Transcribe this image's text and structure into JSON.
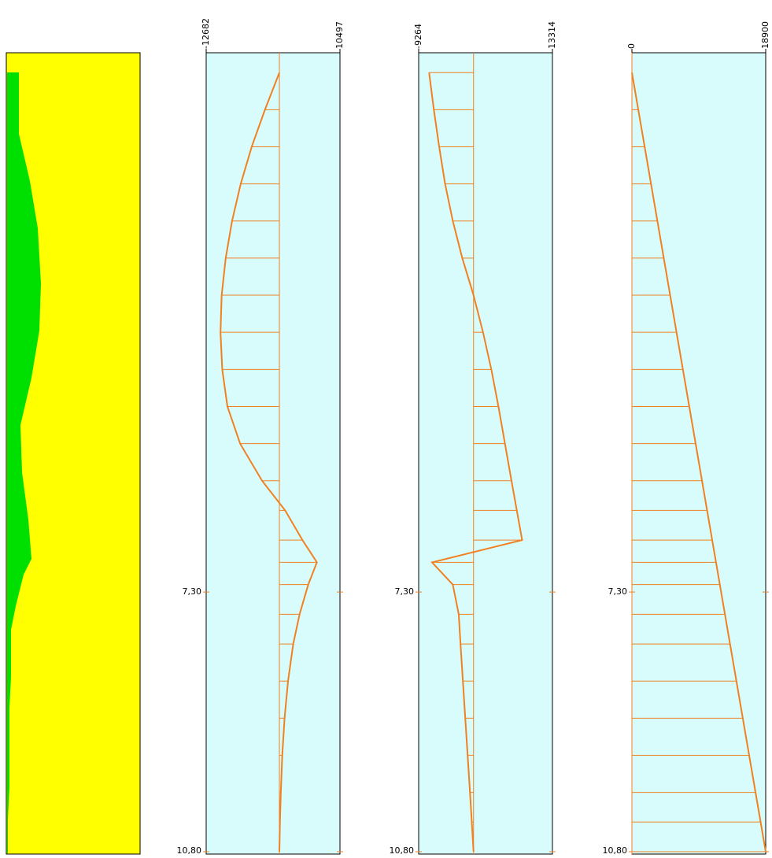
{
  "chart_data": [
    {
      "type": "line",
      "color": "#f08020",
      "background": "#d8fcfc",
      "xlim": [
        -12682,
        10497
      ],
      "xticks": [
        -12682,
        10497
      ],
      "ylim": [
        0,
        10.8
      ],
      "yticks": [
        {
          "value": 7.3,
          "label": "7,30"
        },
        {
          "value": 10.8,
          "label": "10,80"
        }
      ],
      "y": [
        0.3,
        0.8,
        1.3,
        1.8,
        2.3,
        2.8,
        3.3,
        3.8,
        4.3,
        4.8,
        5.3,
        5.8,
        6.2,
        6.6,
        6.9,
        7.2,
        7.6,
        8.0,
        8.5,
        9.0,
        9.5,
        10.0,
        10.4,
        10.8
      ],
      "values": [
        0,
        -2500,
        -4800,
        -6700,
        -8200,
        -9300,
        -10000,
        -10200,
        -9900,
        -9000,
        -6800,
        -3000,
        1000,
        4000,
        6500,
        5000,
        3500,
        2400,
        1500,
        900,
        500,
        250,
        100,
        0
      ]
    },
    {
      "type": "line",
      "color": "#f08020",
      "background": "#d8fcfc",
      "xlim": [
        -9264,
        13314
      ],
      "xticks": [
        -9264,
        13314
      ],
      "ylim": [
        0,
        10.8
      ],
      "yticks": [
        {
          "value": 7.3,
          "label": "7,30"
        },
        {
          "value": 10.8,
          "label": "10,80"
        }
      ],
      "y": [
        0.3,
        0.8,
        1.3,
        1.8,
        2.3,
        2.8,
        3.3,
        3.8,
        4.3,
        4.8,
        5.3,
        5.8,
        6.2,
        6.6,
        6.9,
        7.2,
        7.6,
        8.0,
        8.5,
        9.0,
        9.5,
        10.0,
        10.4,
        10.8
      ],
      "values": [
        -7500,
        -6700,
        -5800,
        -4800,
        -3500,
        -1900,
        0,
        1600,
        3000,
        4200,
        5300,
        6400,
        7300,
        8200,
        -7000,
        -3500,
        -2500,
        -2200,
        -1800,
        -1400,
        -1000,
        -600,
        -300,
        0
      ]
    },
    {
      "type": "line",
      "color": "#f08020",
      "background": "#d8fcfc",
      "xlim": [
        0,
        18900
      ],
      "xticks": [
        0,
        18900
      ],
      "ylim": [
        0,
        10.8
      ],
      "yticks": [
        {
          "value": 7.3,
          "label": "7,30"
        },
        {
          "value": 10.8,
          "label": "10,80"
        }
      ],
      "y": [
        0.3,
        0.8,
        1.3,
        1.8,
        2.3,
        2.8,
        3.3,
        3.8,
        4.3,
        4.8,
        5.3,
        5.8,
        6.2,
        6.6,
        6.9,
        7.2,
        7.6,
        8.0,
        8.5,
        9.0,
        9.5,
        10.0,
        10.4,
        10.8
      ],
      "values": [
        0,
        900,
        1800,
        2700,
        3600,
        4500,
        5400,
        6300,
        7200,
        8100,
        9000,
        9900,
        10620,
        11340,
        11880,
        12420,
        13140,
        13860,
        14760,
        15660,
        16560,
        17460,
        18180,
        18900
      ]
    }
  ]
}
